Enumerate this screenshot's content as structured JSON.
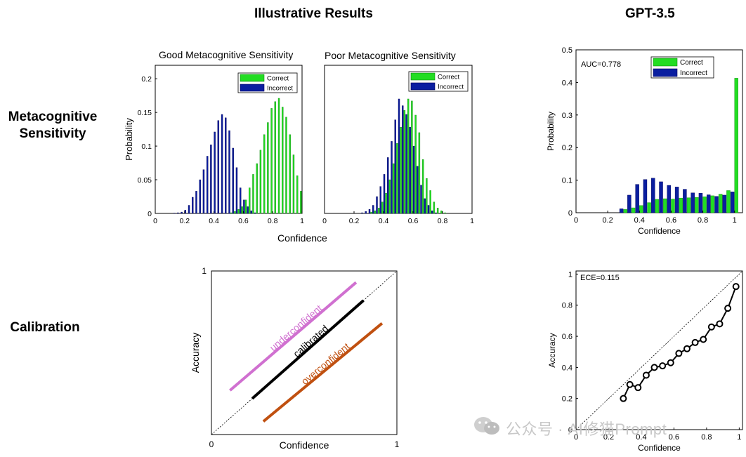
{
  "headings": {
    "illustrative": "Illustrative Results",
    "gpt": "GPT-3.5"
  },
  "row_labels": {
    "metacognitive_line1": "Metacognitive",
    "metacognitive_line2": "Sensitivity",
    "calibration": "Calibration"
  },
  "shared_xlabel": "Confidence",
  "watermark": {
    "text": "公众号 · AI修猫Prompt"
  },
  "colors": {
    "correct": "#22dd22",
    "correct_edge": "#118811",
    "incorrect": "#0a1ea0",
    "incorrect_edge": "#000055",
    "underconfident": "#d070d0",
    "calibrated": "#000000",
    "overconfident": "#c05010"
  },
  "chart_data": [
    {
      "id": "good",
      "type": "bar",
      "title": "Good Metacognitive Sensitivity",
      "xlabel": "",
      "ylabel": "Probability",
      "xlim": [
        0,
        1
      ],
      "ylim": [
        0,
        0.22
      ],
      "xticks": [
        "0",
        "0.2",
        "0.4",
        "0.6",
        "0.8",
        "1"
      ],
      "yticks": [
        "0",
        "0.05",
        "0.1",
        "0.15",
        "0.2"
      ],
      "legend": [
        "Correct",
        "Incorrect"
      ],
      "legend_position": "top-right",
      "bin_width": 0.025,
      "series": [
        {
          "name": "Incorrect",
          "x": [
            0.1375,
            0.1625,
            0.1875,
            0.2125,
            0.2375,
            0.2625,
            0.2875,
            0.3125,
            0.3375,
            0.3625,
            0.3875,
            0.4125,
            0.4375,
            0.4625,
            0.4875,
            0.5125,
            0.5375,
            0.5625,
            0.5875,
            0.6125,
            0.6375,
            0.6625,
            0.6875
          ],
          "values": [
            0.0005,
            0.001,
            0.002,
            0.005,
            0.012,
            0.024,
            0.033,
            0.05,
            0.065,
            0.085,
            0.102,
            0.121,
            0.138,
            0.147,
            0.142,
            0.123,
            0.097,
            0.068,
            0.038,
            0.02,
            0.01,
            0.004,
            0.001
          ]
        },
        {
          "name": "Correct",
          "x": [
            0.5125,
            0.5375,
            0.5625,
            0.5875,
            0.6125,
            0.6375,
            0.6625,
            0.6875,
            0.7125,
            0.7375,
            0.7625,
            0.7875,
            0.8125,
            0.8375,
            0.8625,
            0.8875,
            0.9125,
            0.9375,
            0.9625,
            0.9875
          ],
          "values": [
            0.001,
            0.003,
            0.006,
            0.01,
            0.02,
            0.038,
            0.058,
            0.074,
            0.094,
            0.117,
            0.135,
            0.156,
            0.166,
            0.171,
            0.158,
            0.143,
            0.117,
            0.087,
            0.056,
            0.033
          ]
        }
      ]
    },
    {
      "id": "poor",
      "type": "bar",
      "title": "Poor Metacognitive Sensitivity",
      "xlabel": "",
      "ylabel": "",
      "xlim": [
        0,
        1
      ],
      "ylim": [
        0,
        0.22
      ],
      "xticks": [
        "0",
        "0.2",
        "0.4",
        "0.6",
        "0.8",
        "1"
      ],
      "yticks": [],
      "legend": [
        "Correct",
        "Incorrect"
      ],
      "legend_position": "top-right",
      "bin_width": 0.025,
      "series": [
        {
          "name": "Incorrect",
          "x": [
            0.2625,
            0.2875,
            0.3125,
            0.3375,
            0.3625,
            0.3875,
            0.4125,
            0.4375,
            0.4625,
            0.4875,
            0.5125,
            0.5375,
            0.5625,
            0.5875,
            0.6125,
            0.6375,
            0.6625,
            0.6875,
            0.7125,
            0.7375,
            0.7625
          ],
          "values": [
            0.001,
            0.003,
            0.006,
            0.012,
            0.025,
            0.04,
            0.058,
            0.083,
            0.107,
            0.139,
            0.17,
            0.16,
            0.147,
            0.128,
            0.1,
            0.07,
            0.042,
            0.022,
            0.012,
            0.004,
            0.001
          ]
        },
        {
          "name": "Correct",
          "x": [
            0.3125,
            0.3375,
            0.3625,
            0.3875,
            0.4125,
            0.4375,
            0.4625,
            0.4875,
            0.5125,
            0.5375,
            0.5625,
            0.5875,
            0.6125,
            0.6375,
            0.6625,
            0.6875,
            0.7125,
            0.7375,
            0.7625,
            0.7875,
            0.8125
          ],
          "values": [
            0.002,
            0.004,
            0.008,
            0.017,
            0.03,
            0.05,
            0.074,
            0.104,
            0.128,
            0.153,
            0.17,
            0.167,
            0.146,
            0.12,
            0.08,
            0.052,
            0.034,
            0.017,
            0.008,
            0.004,
            0.001
          ]
        }
      ]
    },
    {
      "id": "gpt_hist",
      "type": "bar",
      "title": "",
      "annotation": "AUC=0.778",
      "xlabel": "Confidence",
      "ylabel": "Probability",
      "xlim": [
        0,
        1.05
      ],
      "ylim": [
        0,
        0.5
      ],
      "xticks": [
        "0",
        "0.2",
        "0.4",
        "0.6",
        "0.8",
        "1"
      ],
      "yticks": [
        "0",
        "0.1",
        "0.2",
        "0.3",
        "0.4",
        "0.5"
      ],
      "legend": [
        "Correct",
        "Incorrect"
      ],
      "legend_position": "top-right",
      "bin_width": 0.05,
      "series": [
        {
          "name": "Incorrect",
          "x": [
            0.3,
            0.35,
            0.4,
            0.45,
            0.5,
            0.55,
            0.6,
            0.65,
            0.7,
            0.75,
            0.8,
            0.85,
            0.9,
            0.95,
            1.0
          ],
          "values": [
            0.012,
            0.054,
            0.087,
            0.102,
            0.106,
            0.095,
            0.084,
            0.079,
            0.072,
            0.061,
            0.06,
            0.055,
            0.05,
            0.054,
            0.064
          ]
        },
        {
          "name": "Correct",
          "x": [
            0.3,
            0.35,
            0.4,
            0.45,
            0.5,
            0.55,
            0.6,
            0.65,
            0.7,
            0.75,
            0.8,
            0.85,
            0.9,
            0.95,
            1.0
          ],
          "values": [
            0.01,
            0.015,
            0.022,
            0.031,
            0.041,
            0.043,
            0.042,
            0.045,
            0.046,
            0.047,
            0.049,
            0.052,
            0.057,
            0.068,
            0.413
          ]
        }
      ]
    },
    {
      "id": "calib_illustrative",
      "type": "line",
      "title": "",
      "xlabel": "Confidence",
      "ylabel": "Accuracy",
      "xlim": [
        0,
        1
      ],
      "ylim": [
        0,
        1
      ],
      "xticks": [
        "0",
        "1"
      ],
      "yticks": [
        "1"
      ],
      "diagonal": true,
      "series": [
        {
          "name": "underconfident",
          "label": "underconfident",
          "x": [
            0.1,
            0.78
          ],
          "y": [
            0.27,
            0.93
          ]
        },
        {
          "name": "calibrated",
          "label": "calibrated",
          "x": [
            0.22,
            0.82
          ],
          "y": [
            0.22,
            0.82
          ]
        },
        {
          "name": "overconfident",
          "label": "overconfident",
          "x": [
            0.28,
            0.92
          ],
          "y": [
            0.08,
            0.68
          ]
        }
      ]
    },
    {
      "id": "gpt_calib",
      "type": "line",
      "title": "",
      "annotation": "ECE=0.115",
      "xlabel": "Confidence",
      "ylabel": "Accuracy",
      "xlim": [
        0,
        1.02
      ],
      "ylim": [
        0,
        1.02
      ],
      "xticks": [
        "0",
        "0.2",
        "0.4",
        "0.6",
        "0.8",
        "1"
      ],
      "yticks": [
        "0",
        "0.2",
        "0.4",
        "0.6",
        "0.8",
        "1"
      ],
      "diagonal": true,
      "series": [
        {
          "name": "GPT-3.5",
          "x": [
            0.29,
            0.33,
            0.38,
            0.43,
            0.48,
            0.53,
            0.58,
            0.63,
            0.68,
            0.73,
            0.78,
            0.83,
            0.88,
            0.93,
            0.98
          ],
          "y": [
            0.2,
            0.29,
            0.27,
            0.35,
            0.4,
            0.41,
            0.43,
            0.49,
            0.52,
            0.56,
            0.58,
            0.66,
            0.68,
            0.78,
            0.92
          ]
        }
      ]
    }
  ]
}
